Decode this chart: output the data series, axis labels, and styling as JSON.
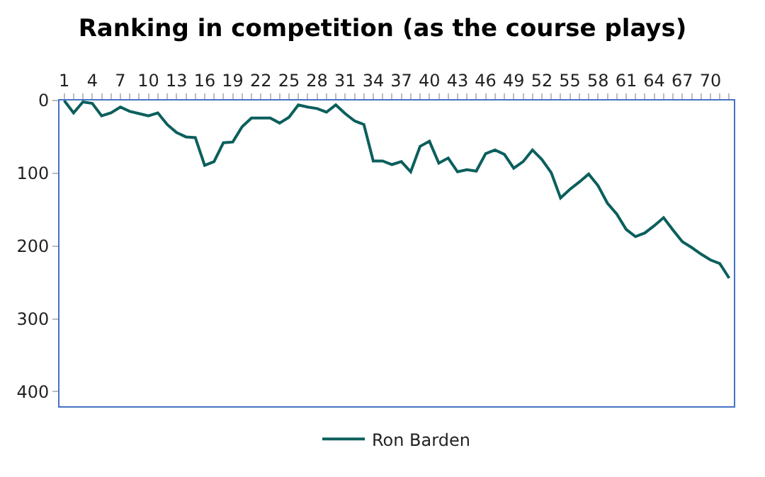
{
  "chart_data": {
    "type": "line",
    "title": "Ranking in competition (as the course plays)",
    "categories": [
      "1",
      null,
      null,
      "4",
      null,
      null,
      "7",
      null,
      null,
      "10",
      null,
      null,
      "13",
      null,
      null,
      "16",
      null,
      null,
      "19",
      null,
      null,
      "22",
      null,
      null,
      "25",
      null,
      null,
      "28",
      null,
      null,
      "31",
      null,
      null,
      "34",
      null,
      null,
      "37",
      null,
      null,
      "40",
      null,
      null,
      "43",
      null,
      null,
      "46",
      null,
      null,
      "49",
      null,
      null,
      "52",
      null,
      null,
      "55",
      null,
      null,
      "58",
      null,
      null,
      "61",
      null,
      null,
      "64",
      null,
      null,
      "67",
      null,
      null,
      "70",
      null,
      null
    ],
    "series": [
      {
        "name": "Ron Barden",
        "color": "#0b5f5c",
        "values": [
          0,
          17,
          2,
          4,
          21,
          17,
          9,
          15,
          18,
          21,
          17,
          33,
          44,
          50,
          51,
          89,
          84,
          58,
          57,
          36,
          24,
          24,
          24,
          31,
          23,
          6,
          9,
          11,
          16,
          6,
          18,
          28,
          33,
          83,
          83,
          88,
          84,
          98,
          63,
          56,
          86,
          79,
          98,
          95,
          97,
          73,
          68,
          74,
          93,
          84,
          68,
          81,
          99,
          134,
          122,
          112,
          101,
          117,
          141,
          156,
          177,
          187,
          182,
          172,
          161,
          178,
          194,
          202,
          211,
          219,
          224,
          244
        ]
      }
    ],
    "ylim": [
      420,
      0
    ],
    "yticks": [
      0,
      100,
      200,
      300,
      400
    ],
    "legend": "bottom",
    "marker": "none",
    "line_style": "solid"
  }
}
